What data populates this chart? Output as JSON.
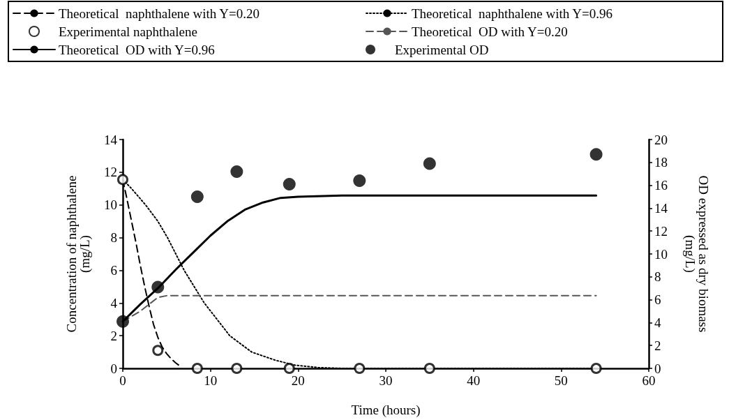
{
  "chart_data": {
    "type": "line",
    "xlabel": "Time (hours)",
    "ylabel": "Concentration of naphthalene\n(mg/L)",
    "y2label": "OD expressed as dry biomass\n(mg/L)",
    "xlim": [
      0,
      60
    ],
    "xticks": [
      0,
      10,
      20,
      30,
      40,
      50,
      60
    ],
    "ylim": [
      0,
      14
    ],
    "yticks": [
      0,
      2,
      4,
      6,
      8,
      10,
      12,
      14
    ],
    "y2lim": [
      0,
      20
    ],
    "y2ticks": [
      0,
      2,
      4,
      6,
      8,
      10,
      12,
      14,
      16,
      18,
      20
    ],
    "grid": false,
    "legend": "top",
    "series": [
      {
        "name": "Theoretical  naphthalene with Y=0.20",
        "line_style": "dashed",
        "marker": "none",
        "color": "#000000",
        "x": [
          0,
          0.5,
          1,
          1.5,
          2,
          2.5,
          3,
          3.5,
          4,
          4.5,
          5,
          5.5,
          6,
          6.5
        ],
        "values": [
          11.55,
          10.3,
          9.0,
          7.7,
          6.3,
          5.0,
          3.8,
          2.7,
          1.9,
          1.3,
          0.9,
          0.6,
          0.35,
          0.15
        ]
      },
      {
        "name": "Theoretical  naphthalene with Y=0.96",
        "line_style": "dotted",
        "marker": "none",
        "color": "#000000",
        "x": [
          0,
          1,
          2.6,
          4,
          5.1,
          7,
          9.3,
          12.2,
          14.7,
          17.4,
          19.6,
          22.3,
          25,
          54
        ],
        "values": [
          11.55,
          11.0,
          10,
          9.0,
          8,
          6,
          4,
          2,
          1,
          0.5,
          0.2,
          0.05,
          0,
          0
        ]
      },
      {
        "name": "Experimental naphthalene",
        "type": "scatter",
        "marker": "circle",
        "color": "#000000",
        "x": [
          0,
          4,
          8.5,
          13,
          19,
          27,
          35,
          54
        ],
        "values": [
          11.55,
          1.1,
          0,
          0,
          0,
          0,
          0,
          0
        ]
      },
      {
        "name": "Theoretical  OD with Y=0.20",
        "axis": "y2",
        "line_style": "dashed",
        "marker": "none",
        "color": "#555555",
        "x": [
          0,
          2,
          4,
          5,
          54
        ],
        "values": [
          4.1,
          5.0,
          6.2,
          6.35,
          6.35
        ]
      },
      {
        "name": "Theoretical  OD with Y=0.96",
        "axis": "y2",
        "line_style": "solid",
        "marker": "none",
        "color": "#000000",
        "x": [
          0,
          2,
          4,
          6,
          8,
          10,
          12,
          14,
          16,
          18,
          20,
          25,
          54
        ],
        "values": [
          4.1,
          5.6,
          7.0,
          8.6,
          10.1,
          11.6,
          12.9,
          13.9,
          14.5,
          14.9,
          15.0,
          15.1,
          15.1
        ]
      },
      {
        "name": "Experimental OD",
        "type": "scatter",
        "axis": "y2",
        "marker": "circle",
        "color": "#000000",
        "x": [
          0,
          4,
          8.5,
          13,
          19,
          27,
          35,
          54
        ],
        "values": [
          4.1,
          7.1,
          15.0,
          17.2,
          16.1,
          16.4,
          17.9,
          18.7
        ]
      }
    ]
  }
}
